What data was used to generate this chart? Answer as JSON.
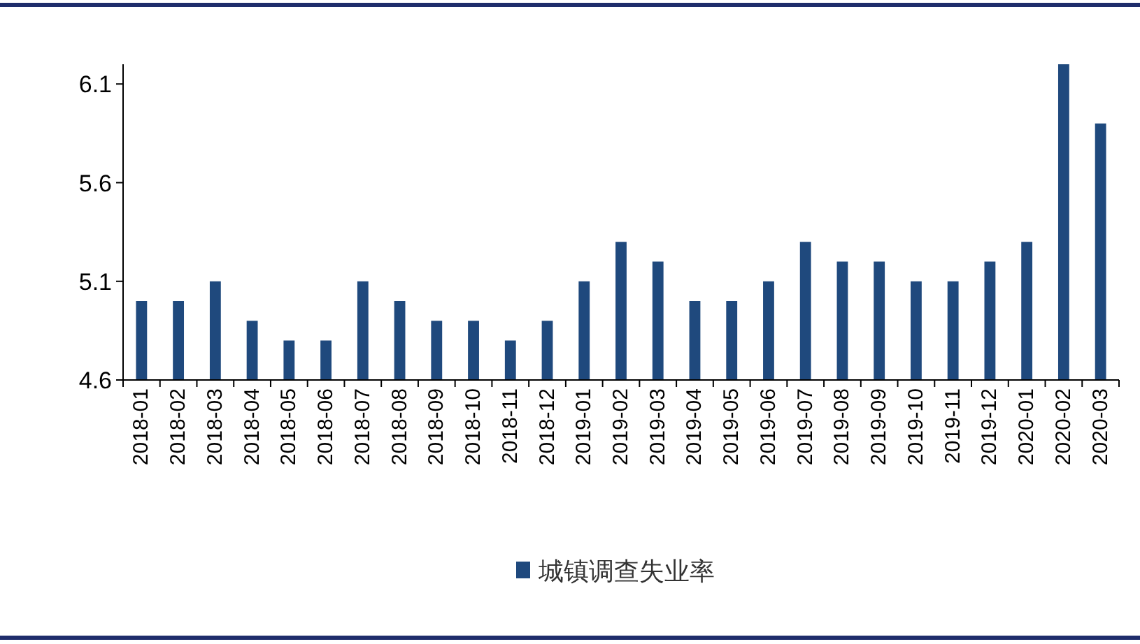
{
  "chart_data": {
    "type": "bar",
    "categories": [
      "2018-01",
      "2018-02",
      "2018-03",
      "2018-04",
      "2018-05",
      "2018-06",
      "2018-07",
      "2018-08",
      "2018-09",
      "2018-10",
      "2018-11",
      "2018-12",
      "2019-01",
      "2019-02",
      "2019-03",
      "2019-04",
      "2019-05",
      "2019-06",
      "2019-07",
      "2019-08",
      "2019-09",
      "2019-10",
      "2019-11",
      "2019-12",
      "2020-01",
      "2020-02",
      "2020-03"
    ],
    "series": [
      {
        "name": "城镇调查失业率",
        "color": "#1f497d",
        "values": [
          5.0,
          5.0,
          5.1,
          4.9,
          4.8,
          4.8,
          5.1,
          5.0,
          4.9,
          4.9,
          4.8,
          4.9,
          5.1,
          5.3,
          5.2,
          5.0,
          5.0,
          5.1,
          5.3,
          5.2,
          5.2,
          5.1,
          5.1,
          5.2,
          5.3,
          6.2,
          5.9
        ]
      }
    ],
    "ylim": [
      4.6,
      6.2
    ],
    "yticks": [
      4.6,
      5.1,
      5.6,
      6.1
    ],
    "legend": "bottom"
  }
}
